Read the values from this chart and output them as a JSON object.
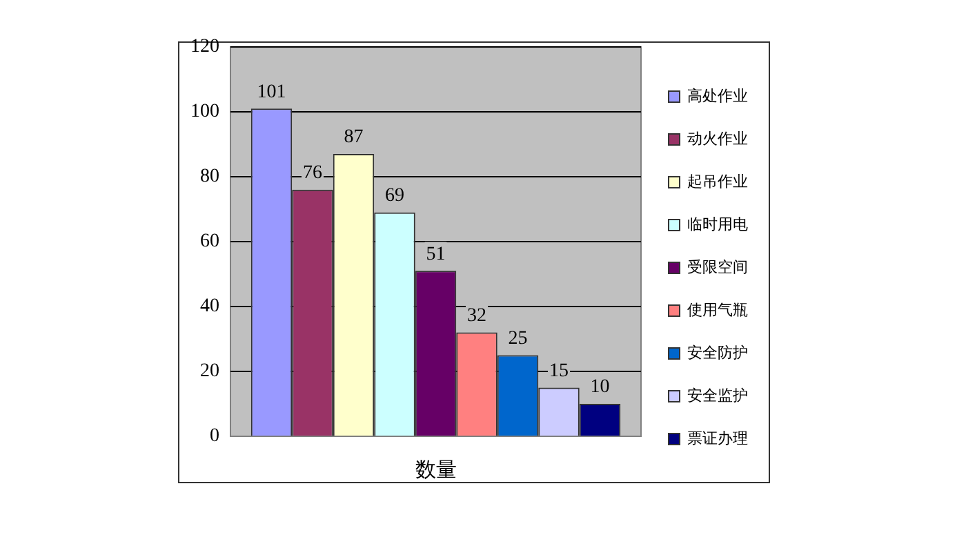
{
  "chart_data": {
    "type": "bar",
    "xlabel": "数量",
    "categories": [
      null
    ],
    "series": [
      {
        "name": "高处作业",
        "color": "#9999ff",
        "values": [
          101
        ]
      },
      {
        "name": "动火作业",
        "color": "#993366",
        "values": [
          76
        ]
      },
      {
        "name": "起吊作业",
        "color": "#ffffcc",
        "values": [
          87
        ]
      },
      {
        "name": "临时用电",
        "color": "#ccffff",
        "values": [
          69
        ]
      },
      {
        "name": "受限空间",
        "color": "#660066",
        "values": [
          51
        ]
      },
      {
        "name": "使用气瓶",
        "color": "#ff8080",
        "values": [
          32
        ]
      },
      {
        "name": "安全防护",
        "color": "#0066cc",
        "values": [
          25
        ]
      },
      {
        "name": "安全监护",
        "color": "#ccccff",
        "values": [
          15
        ]
      },
      {
        "name": "票证办理",
        "color": "#000080",
        "values": [
          10
        ]
      }
    ],
    "ylim": [
      0,
      120
    ],
    "yticks": [
      0,
      20,
      40,
      60,
      80,
      100,
      120
    ],
    "grid": "y",
    "legend": "right",
    "data_labels": true,
    "tick_labels": "y"
  }
}
